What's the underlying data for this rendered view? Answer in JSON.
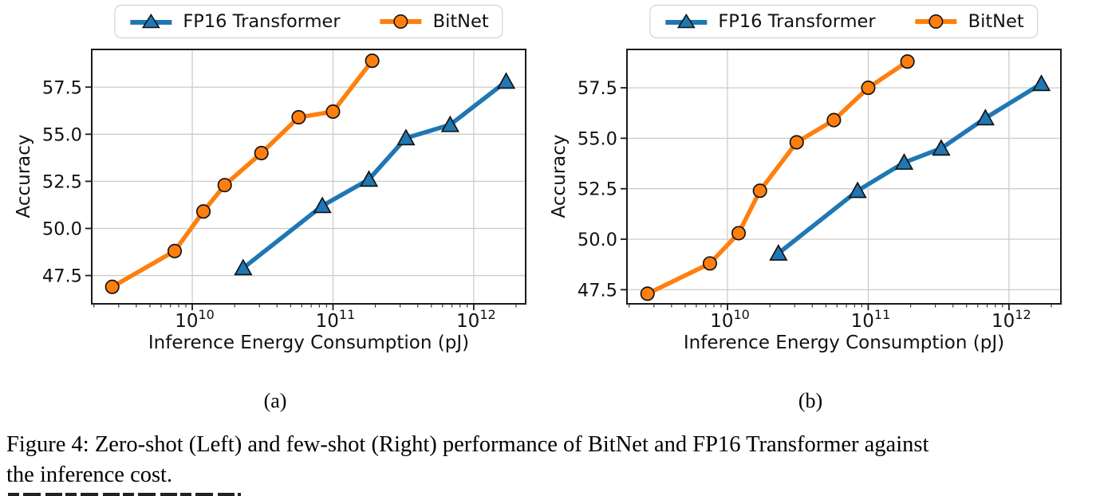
{
  "figure": {
    "caption_lines": [
      "Figure 4: Zero-shot (Left) and few-shot (Right) performance of BitNet and FP16 Transformer against",
      "the inference cost."
    ]
  },
  "legend": {
    "items": [
      {
        "label": "FP16 Transformer",
        "color": "#1f77b4",
        "marker": "triangle"
      },
      {
        "label": "BitNet",
        "color": "#ff7f0e",
        "marker": "circle"
      }
    ]
  },
  "colors": {
    "fp16_blue": "#1f77b4",
    "bitnet_orange": "#ff7f0e",
    "grid": "#cccccc",
    "spine": "#1a1a1a",
    "text": "#111111"
  },
  "chart_data": [
    {
      "type": "line",
      "panel": "a",
      "sublabel": "(a)",
      "caption_ref": "Zero-shot (Left)",
      "xlabel": "Inference Energy Consumption (pJ)",
      "ylabel": "Accuracy",
      "xscale": "log",
      "xlim": [
        1930000000,
        2340000000000
      ],
      "ylim": [
        46.0,
        59.5
      ],
      "grid": true,
      "yticks": [
        47.5,
        50.0,
        52.5,
        55.0,
        57.5
      ],
      "ytick_labels": [
        "47.5",
        "50.0",
        "52.5",
        "55.0",
        "57.5"
      ],
      "xtick_values": [
        10000000000,
        100000000000,
        1000000000000
      ],
      "xtick_exponents": [
        "10",
        "11",
        "12"
      ],
      "series": [
        {
          "name": "FP16 Transformer",
          "marker": "triangle",
          "color": "#1f77b4",
          "x": [
            23000000000,
            84000000000,
            180000000000,
            330000000000,
            680000000000,
            1700000000000
          ],
          "y": [
            47.9,
            51.2,
            52.6,
            54.8,
            55.5,
            57.8
          ]
        },
        {
          "name": "BitNet",
          "marker": "circle",
          "color": "#ff7f0e",
          "x": [
            2700000000,
            7500000000,
            12000000000,
            17000000000,
            31000000000,
            57000000000,
            100000000000,
            190000000000
          ],
          "y": [
            46.9,
            48.8,
            50.9,
            52.3,
            54.0,
            55.9,
            56.2,
            58.9
          ]
        }
      ]
    },
    {
      "type": "line",
      "panel": "b",
      "sublabel": "(b)",
      "caption_ref": "few-shot (Right)",
      "xlabel": "Inference Energy Consumption (pJ)",
      "ylabel": "Accuracy",
      "xscale": "log",
      "xlim": [
        1930000000,
        2340000000000
      ],
      "ylim": [
        46.8,
        59.4
      ],
      "grid": true,
      "yticks": [
        47.5,
        50.0,
        52.5,
        55.0,
        57.5
      ],
      "ytick_labels": [
        "47.5",
        "50.0",
        "52.5",
        "55.0",
        "57.5"
      ],
      "xtick_values": [
        10000000000,
        100000000000,
        1000000000000
      ],
      "xtick_exponents": [
        "10",
        "11",
        "12"
      ],
      "series": [
        {
          "name": "FP16 Transformer",
          "marker": "triangle",
          "color": "#1f77b4",
          "x": [
            23000000000,
            84000000000,
            180000000000,
            330000000000,
            680000000000,
            1700000000000
          ],
          "y": [
            49.3,
            52.4,
            53.8,
            54.5,
            56.0,
            57.7
          ]
        },
        {
          "name": "BitNet",
          "marker": "circle",
          "color": "#ff7f0e",
          "x": [
            2700000000,
            7500000000,
            12000000000,
            17000000000,
            31000000000,
            57000000000,
            100000000000,
            190000000000
          ],
          "y": [
            47.3,
            48.8,
            50.3,
            52.4,
            54.8,
            55.9,
            57.5,
            58.8
          ]
        }
      ]
    }
  ]
}
